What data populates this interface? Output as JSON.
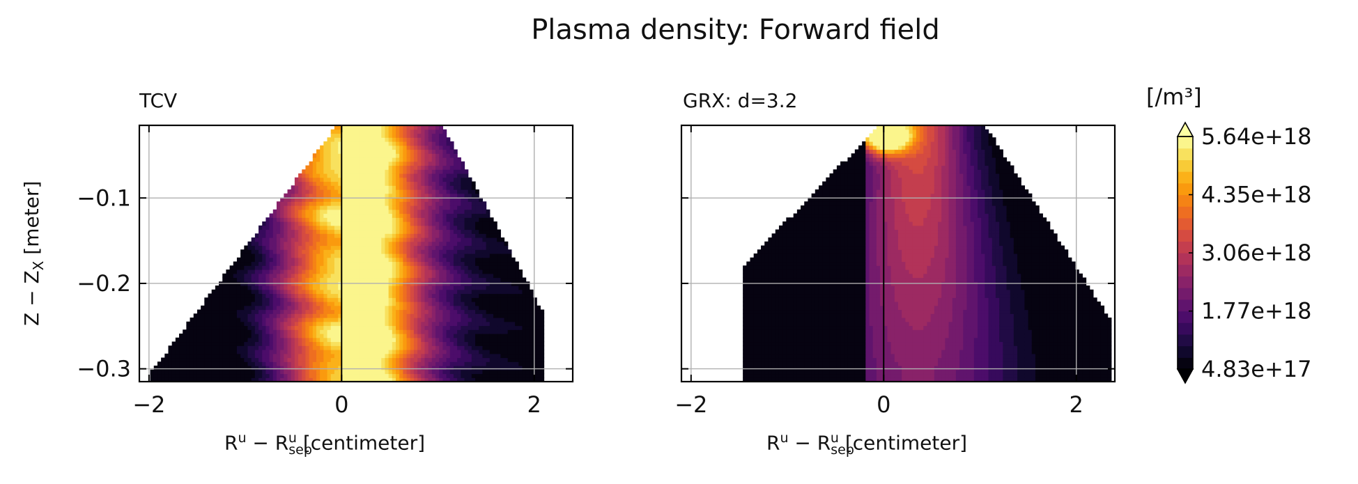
{
  "chart_data": {
    "title": "Plasma density: Forward field",
    "type": "heatmap",
    "colormap": "inferno",
    "colorbar": {
      "unit": "[/m³]",
      "ticks": [
        "5.64e+18",
        "4.35e+18",
        "3.06e+18",
        "1.77e+18",
        "4.83e+17"
      ],
      "tick_values": [
        5.64e+18,
        4.35e+18,
        3.06e+18,
        1.77e+18,
        4.83e+17
      ],
      "min": 4.83e+17,
      "max": 5.64e+18,
      "extend": "both",
      "levels": 20
    },
    "panels": [
      {
        "title": "TCV",
        "xlabel": "R^u − R^u_sep [centimeter]",
        "ylabel": "Z − Z_X [meter]",
        "xlim": [
          -2.1,
          2.4
        ],
        "ylim": [
          -0.315,
          -0.015
        ],
        "xticks": [
          "−2",
          "0",
          "2"
        ],
        "yticks": [
          "−0.1",
          "−0.2",
          "−0.3"
        ],
        "grid": true
      },
      {
        "title": "GRX: d=3.2",
        "xlabel": "R^u − R^u_sep [centimeter]",
        "xlim": [
          -2.1,
          2.4
        ],
        "ylim": [
          -0.315,
          -0.015
        ],
        "xticks": [
          "−2",
          "0",
          "2"
        ],
        "grid": true
      }
    ]
  }
}
